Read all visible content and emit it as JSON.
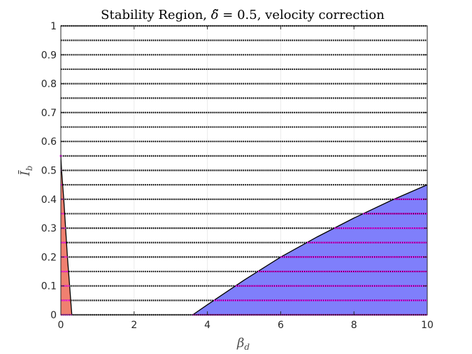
{
  "chart_data": {
    "type": "area",
    "title": "Stability Region, δ̃ = 0.5, velocity correction",
    "title_parts": [
      "Stability Region, ",
      "δ̃",
      " = 0.5, velocity correction"
    ],
    "xlabel": "β",
    "xlabel_sub": "d",
    "ylabel": "Ī",
    "ylabel_sub": "b",
    "xlim": [
      0,
      10
    ],
    "ylim": [
      0,
      1
    ],
    "xticks": [
      0,
      2,
      4,
      6,
      8,
      10
    ],
    "yticks": [
      0,
      0.1,
      0.2,
      0.3,
      0.4,
      0.5,
      0.6,
      0.7,
      0.8,
      0.9,
      1
    ],
    "ytick_labels": [
      "0",
      "0.1",
      "0.2",
      "0.3",
      "0.4",
      "0.5",
      "0.6",
      "0.7",
      "0.8",
      "0.9",
      "1"
    ],
    "grid": true,
    "sample_lines_y": [
      0,
      0.05,
      0.1,
      0.15,
      0.2,
      0.25,
      0.3,
      0.35,
      0.4,
      0.45,
      0.5,
      0.55,
      0.6,
      0.65,
      0.7,
      0.75,
      0.8,
      0.85,
      0.9,
      0.95,
      1
    ],
    "regions": [
      {
        "name": "red-region",
        "color": "#f08070",
        "points": [
          [
            0,
            0.55
          ],
          [
            0.02,
            0.5
          ],
          [
            0.08,
            0.4
          ],
          [
            0.13,
            0.3
          ],
          [
            0.18,
            0.2
          ],
          [
            0.24,
            0.1
          ],
          [
            0.3,
            0
          ]
        ]
      },
      {
        "name": "blue-region",
        "color": "#7f7ffb",
        "points": [
          [
            3.6,
            0
          ],
          [
            4.0,
            0.035
          ],
          [
            5.0,
            0.12
          ],
          [
            6.0,
            0.2
          ],
          [
            7.0,
            0.27
          ],
          [
            8.0,
            0.335
          ],
          [
            9.0,
            0.395
          ],
          [
            10.0,
            0.45
          ]
        ]
      }
    ],
    "colors": {
      "sample_dots": "#000000",
      "stable_samples": "#ff00ff",
      "boundary": "#000000"
    }
  }
}
